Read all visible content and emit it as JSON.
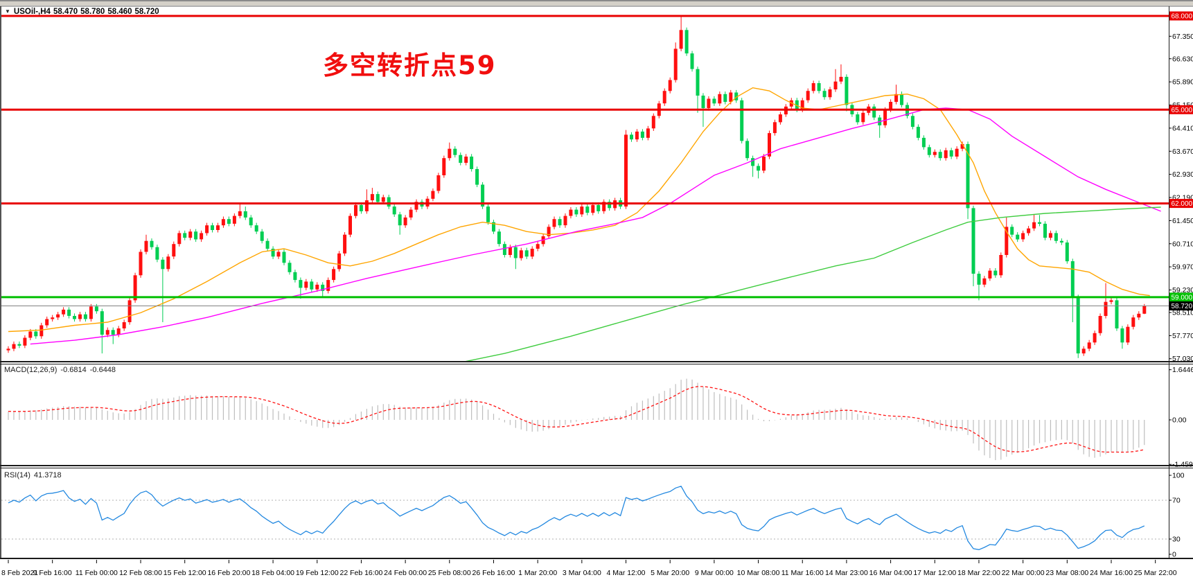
{
  "header": {
    "dropdown_icon": "▼",
    "symbol_period": "USOil-,H4",
    "open": "58.470",
    "high": "58.780",
    "low": "58.460",
    "close": "58.720"
  },
  "annotation": {
    "text": "多空转折点59"
  },
  "colors": {
    "candle_up": "#ff0f0f",
    "candle_down": "#00ce52",
    "ma_fast": "#ffa500",
    "ma_mid": "#ff00ff",
    "ma_slow": "#3fcc3f",
    "hline_red": "#e80000",
    "hline_green": "#00bf00",
    "current_line": "#808080",
    "current_box": "#000000",
    "macd_hist": "#bdbdbd",
    "macd_signal": "#ff1414",
    "rsi_line": "#2288e0",
    "rsi_level": "#b0b0b0",
    "axis_text": "#000000",
    "annotation": "#f10e0e"
  },
  "chart_data": {
    "type": "candlestick",
    "symbol": "USOil-",
    "timeframe": "H4",
    "title": "USOil- H4 with MACD(12,26,9) and RSI(14)",
    "x_labels": [
      "8 Feb 2021",
      "9 Feb 16:00",
      "11 Feb 00:00",
      "12 Feb 08:00",
      "15 Feb 12:00",
      "16 Feb 20:00",
      "18 Feb 04:00",
      "19 Feb 12:00",
      "22 Feb 16:00",
      "24 Feb 00:00",
      "25 Feb 08:00",
      "26 Feb 16:00",
      "1 Mar 20:00",
      "3 Mar 04:00",
      "4 Mar 12:00",
      "5 Mar 20:00",
      "9 Mar 00:00",
      "10 Mar 08:00",
      "11 Mar 16:00",
      "14 Mar 23:00",
      "16 Mar 04:00",
      "17 Mar 12:00",
      "18 Mar 22:00",
      "22 Mar 00:00",
      "23 Mar 08:00",
      "24 Mar 16:00",
      "25 Mar 22:00"
    ],
    "candles_per_label": 8,
    "ylim": [
      56.9,
      68.4
    ],
    "first_open": 57.3,
    "default_wick": 0.08,
    "closes": [
      57.35,
      57.5,
      57.45,
      57.7,
      57.9,
      57.75,
      58.1,
      58.3,
      58.35,
      58.45,
      58.6,
      58.4,
      58.3,
      58.45,
      58.3,
      58.7,
      58.55,
      57.8,
      57.95,
      57.8,
      58.0,
      58.2,
      58.9,
      59.7,
      60.45,
      60.8,
      60.6,
      60.2,
      59.9,
      60.3,
      60.7,
      61.05,
      60.9,
      61.1,
      60.85,
      61.05,
      61.3,
      61.15,
      61.3,
      61.5,
      61.35,
      61.6,
      61.75,
      61.55,
      61.3,
      61.1,
      60.8,
      60.55,
      60.3,
      60.45,
      60.1,
      59.8,
      59.55,
      59.3,
      59.5,
      59.25,
      59.4,
      59.2,
      59.55,
      59.9,
      60.4,
      61.0,
      61.6,
      61.95,
      61.75,
      62.1,
      62.3,
      62.05,
      62.2,
      61.9,
      61.65,
      61.3,
      61.55,
      61.8,
      62.05,
      61.9,
      62.15,
      62.4,
      62.9,
      63.45,
      63.75,
      63.55,
      63.3,
      63.5,
      63.1,
      62.6,
      61.9,
      61.4,
      61.1,
      60.7,
      60.35,
      60.6,
      60.25,
      60.5,
      60.3,
      60.55,
      60.7,
      60.95,
      61.25,
      61.5,
      61.3,
      61.6,
      61.8,
      61.65,
      61.9,
      61.7,
      61.95,
      61.75,
      62.05,
      61.85,
      62.1,
      61.9,
      64.2,
      64.05,
      64.3,
      64.1,
      64.4,
      64.8,
      65.2,
      65.6,
      65.95,
      66.95,
      67.55,
      66.8,
      66.3,
      65.45,
      65.05,
      65.35,
      65.2,
      65.5,
      65.25,
      65.55,
      65.3,
      64.0,
      63.45,
      63.2,
      63.05,
      63.5,
      64.25,
      64.6,
      64.85,
      65.1,
      65.3,
      65.0,
      65.3,
      65.6,
      65.85,
      65.6,
      65.4,
      65.65,
      65.9,
      66.05,
      65.15,
      64.85,
      64.6,
      64.9,
      65.1,
      64.75,
      64.5,
      65.0,
      65.25,
      65.5,
      65.15,
      64.8,
      64.45,
      64.1,
      63.8,
      63.55,
      63.65,
      63.45,
      63.7,
      63.5,
      63.75,
      63.9,
      61.85,
      59.75,
      59.4,
      59.6,
      59.85,
      59.7,
      60.35,
      61.25,
      61.0,
      60.85,
      61.05,
      61.2,
      61.4,
      61.35,
      60.9,
      61.05,
      60.8,
      60.75,
      60.15,
      59.0,
      57.2,
      57.35,
      57.55,
      57.85,
      58.4,
      58.85,
      58.9,
      58.0,
      57.55,
      58.05,
      58.35,
      58.47,
      58.72
    ],
    "wick_overrides": {
      "17": [
        57.2,
        null
      ],
      "19": [
        57.5,
        null
      ],
      "25": [
        null,
        61.0
      ],
      "28": [
        58.2,
        null
      ],
      "42": [
        null,
        61.98
      ],
      "43": [
        null,
        61.9
      ],
      "53": [
        58.95,
        null
      ],
      "57": [
        59.0,
        null
      ],
      "65": [
        null,
        62.45
      ],
      "66": [
        null,
        62.5
      ],
      "71": [
        61.0,
        null
      ],
      "80": [
        null,
        63.95
      ],
      "92": [
        59.9,
        null
      ],
      "112": [
        null,
        64.35
      ],
      "121": [
        null,
        67.15
      ],
      "122": [
        null,
        67.98
      ],
      "125": [
        64.9,
        null
      ],
      "126": [
        64.45,
        null
      ],
      "135": [
        62.85,
        null
      ],
      "136": [
        62.8,
        null
      ],
      "150": [
        null,
        66.3
      ],
      "151": [
        null,
        66.45
      ],
      "152": [
        64.95,
        null
      ],
      "158": [
        64.1,
        null
      ],
      "161": [
        null,
        65.8
      ],
      "174": [
        61.5,
        null
      ],
      "175": [
        59.35,
        null
      ],
      "176": [
        58.9,
        null
      ],
      "181": [
        null,
        61.55
      ],
      "186": [
        null,
        61.65
      ],
      "187": [
        null,
        61.63
      ],
      "193": [
        58.2,
        null
      ],
      "194": [
        57.05,
        null
      ],
      "199": [
        null,
        59.45
      ],
      "202": [
        57.35,
        null
      ],
      "206": [
        58.46,
        58.78
      ]
    },
    "warmup_closes": [
      55.8,
      55.95,
      55.85,
      56.1,
      56.0,
      56.2,
      56.35,
      56.25,
      56.45,
      56.6,
      56.5,
      56.7,
      56.6,
      56.8,
      56.95,
      56.85,
      57.0,
      56.9,
      57.1,
      57.0,
      57.15,
      57.05,
      57.2,
      57.1,
      57.25,
      57.15,
      57.3,
      57.2,
      57.35,
      57.3
    ],
    "y_ticks": [
      67.35,
      66.63,
      65.89,
      65.15,
      64.41,
      63.67,
      62.93,
      62.19,
      61.45,
      60.71,
      59.97,
      59.23,
      58.51,
      57.77,
      57.03
    ],
    "hlines": [
      {
        "price": 68.0,
        "label": "68.000",
        "color_key": "hline_red"
      },
      {
        "price": 65.0,
        "label": "65.000",
        "color_key": "hline_red"
      },
      {
        "price": 62.0,
        "label": "62.000",
        "color_key": "hline_red"
      },
      {
        "price": 59.0,
        "label": "59.000",
        "color_key": "hline_green"
      }
    ],
    "current_price": {
      "value": 58.72,
      "label": "58.720"
    },
    "ma_lines": [
      {
        "name": "ma-fast",
        "color_key": "ma_fast",
        "points": [
          [
            0,
            57.9
          ],
          [
            6,
            57.95
          ],
          [
            12,
            58.1
          ],
          [
            18,
            58.2
          ],
          [
            24,
            58.5
          ],
          [
            30,
            58.95
          ],
          [
            36,
            59.5
          ],
          [
            42,
            60.1
          ],
          [
            46,
            60.45
          ],
          [
            50,
            60.55
          ],
          [
            54,
            60.35
          ],
          [
            58,
            60.1
          ],
          [
            62,
            60.0
          ],
          [
            66,
            60.15
          ],
          [
            70,
            60.4
          ],
          [
            74,
            60.7
          ],
          [
            78,
            61.0
          ],
          [
            82,
            61.25
          ],
          [
            86,
            61.4
          ],
          [
            90,
            61.3
          ],
          [
            94,
            61.1
          ],
          [
            98,
            61.0
          ],
          [
            102,
            61.05
          ],
          [
            106,
            61.15
          ],
          [
            110,
            61.3
          ],
          [
            114,
            61.7
          ],
          [
            118,
            62.4
          ],
          [
            122,
            63.3
          ],
          [
            126,
            64.3
          ],
          [
            129,
            64.9
          ],
          [
            132,
            65.4
          ],
          [
            135,
            65.7
          ],
          [
            138,
            65.6
          ],
          [
            141,
            65.3
          ],
          [
            144,
            65.05
          ],
          [
            147,
            65.0
          ],
          [
            151,
            65.15
          ],
          [
            155,
            65.3
          ],
          [
            159,
            65.45
          ],
          [
            163,
            65.5
          ],
          [
            166,
            65.35
          ],
          [
            169,
            65.0
          ],
          [
            172,
            64.2
          ],
          [
            175,
            63.3
          ],
          [
            177,
            62.4
          ],
          [
            179,
            61.7
          ],
          [
            181,
            61.1
          ],
          [
            183,
            60.55
          ],
          [
            185,
            60.2
          ],
          [
            187,
            60.0
          ],
          [
            190,
            59.95
          ],
          [
            193,
            59.9
          ],
          [
            196,
            59.8
          ],
          [
            199,
            59.5
          ],
          [
            202,
            59.25
          ],
          [
            205,
            59.1
          ],
          [
            207,
            59.05
          ]
        ]
      },
      {
        "name": "ma-mid",
        "color_key": "ma_mid",
        "points": [
          [
            4,
            57.5
          ],
          [
            12,
            57.62
          ],
          [
            20,
            57.8
          ],
          [
            28,
            58.05
          ],
          [
            36,
            58.35
          ],
          [
            46,
            58.8
          ],
          [
            56,
            59.2
          ],
          [
            65,
            59.6
          ],
          [
            75,
            60.0
          ],
          [
            84,
            60.35
          ],
          [
            94,
            60.7
          ],
          [
            103,
            61.1
          ],
          [
            110,
            61.35
          ],
          [
            115,
            61.55
          ],
          [
            120,
            62.0
          ],
          [
            124,
            62.45
          ],
          [
            128,
            62.9
          ],
          [
            134,
            63.3
          ],
          [
            140,
            63.75
          ],
          [
            147,
            64.1
          ],
          [
            153,
            64.4
          ],
          [
            159,
            64.66
          ],
          [
            166,
            65.0
          ],
          [
            170,
            65.05
          ],
          [
            174,
            65.0
          ],
          [
            178,
            64.7
          ],
          [
            182,
            64.15
          ],
          [
            188,
            63.5
          ],
          [
            194,
            62.85
          ],
          [
            199,
            62.45
          ],
          [
            204,
            62.1
          ],
          [
            209,
            61.75
          ]
        ]
      },
      {
        "name": "ma-slow",
        "color_key": "ma_slow",
        "points": [
          [
            79,
            56.8
          ],
          [
            90,
            57.2
          ],
          [
            102,
            57.75
          ],
          [
            112,
            58.25
          ],
          [
            122,
            58.75
          ],
          [
            132,
            59.2
          ],
          [
            142,
            59.65
          ],
          [
            150,
            60.0
          ],
          [
            157,
            60.25
          ],
          [
            164,
            60.75
          ],
          [
            170,
            61.15
          ],
          [
            174,
            61.4
          ],
          [
            180,
            61.55
          ],
          [
            188,
            61.68
          ],
          [
            196,
            61.76
          ],
          [
            202,
            61.82
          ],
          [
            209,
            61.88
          ]
        ]
      }
    ],
    "macd": {
      "label": "MACD(12,26,9)",
      "value": "-0.6814",
      "signal_value": "-0.6448",
      "fast": 12,
      "slow": 26,
      "signal": 9,
      "y_ticks": [
        {
          "v": 1.6446,
          "label": "1.6446"
        },
        {
          "v": 0,
          "label": "0.00"
        },
        {
          "v": -1.4594,
          "label": "-1.4594"
        }
      ]
    },
    "rsi": {
      "label": "RSI(14)",
      "value": "41.3718",
      "period": 14,
      "levels": [
        70,
        30
      ],
      "y_ticks": [
        {
          "v": 100,
          "label": "100"
        },
        {
          "v": 70,
          "label": "70"
        },
        {
          "v": 30,
          "label": "30"
        },
        {
          "v": 0,
          "label": "0"
        }
      ]
    }
  }
}
